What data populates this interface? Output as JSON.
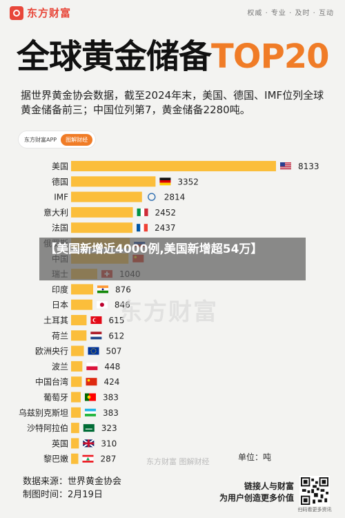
{
  "brand": {
    "name": "东方财富",
    "slogan": "权威 · 专业 · 及时 · 互动"
  },
  "title": {
    "main": "全球黄金储备",
    "accent": "TOP20"
  },
  "subtitle": "据世界黄金协会数据，截至2024年末，美国、德国、IMF位列全球黄金储备前三；中国位列第7，黄金储备2280吨。",
  "pill": {
    "label": "东方财富APP",
    "button": "图解财经"
  },
  "overlay": {
    "text": "【美国新增近4000例,美国新增超54万】"
  },
  "watermark": {
    "big": "东方财富",
    "small": "东方财富 图解财经"
  },
  "unit": "单位：吨",
  "footer": {
    "source": "数据来源：世界黄金协会",
    "date": "制图时间：2月19日",
    "cta_line1": "链接人与财富",
    "cta_line2": "为用户创造更多价值",
    "qr_caption": "扫码看更多资讯"
  },
  "colors": {
    "bar": "#fbbe3b",
    "accent": "#f07c27",
    "brand": "#e8473a"
  },
  "chart_data": {
    "type": "bar",
    "orientation": "horizontal",
    "categories": [
      "美国",
      "德国",
      "IMF",
      "意大利",
      "法国",
      "俄罗斯",
      "中国",
      "瑞士",
      "印度",
      "日本",
      "土耳其",
      "荷兰",
      "欧洲央行",
      "波兰",
      "中国台湾",
      "葡萄牙",
      "乌兹别克斯坦",
      "沙特阿拉伯",
      "英国",
      "黎巴嫩"
    ],
    "values": [
      8133,
      3352,
      2814,
      2452,
      2437,
      2333,
      2280,
      1040,
      876,
      846,
      615,
      612,
      507,
      448,
      424,
      383,
      383,
      323,
      310,
      287
    ],
    "value_labels": [
      "8133",
      "3352",
      "2814",
      "2452",
      "2437",
      "",
      "",
      "1040",
      "876",
      "846",
      "615",
      "612",
      "507",
      "448",
      "424",
      "383",
      "383",
      "323",
      "310",
      "287"
    ],
    "flags": [
      "us",
      "de",
      "imf",
      "it",
      "fr",
      "ru",
      "cn",
      "ch",
      "in",
      "jp",
      "tr",
      "nl",
      "eu",
      "pl",
      "tw",
      "pt",
      "uz",
      "sa",
      "gb",
      "lb"
    ]
  }
}
